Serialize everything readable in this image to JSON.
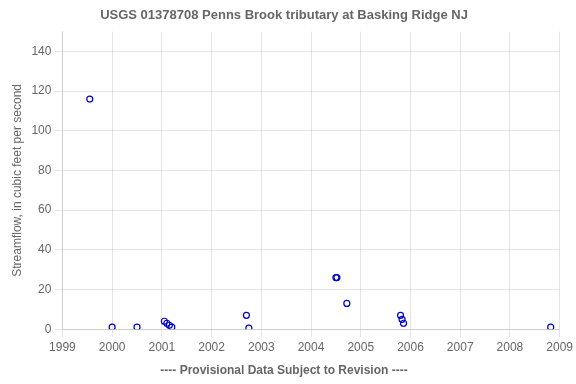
{
  "chart_data": {
    "type": "scatter",
    "title": "USGS 01378708 Penns Brook tributary at Basking Ridge NJ",
    "y_label": "Streamflow, in cubic feet per second",
    "annotation": "---- Provisional Data Subject to Revision ----",
    "x": [
      1999.55,
      2000.0,
      2000.5,
      2001.05,
      2001.1,
      2001.15,
      2001.2,
      2002.7,
      2002.75,
      2004.5,
      2004.52,
      2004.72,
      2005.8,
      2005.83,
      2005.86,
      2008.82
    ],
    "values": [
      116,
      1,
      1,
      4,
      3,
      2,
      1,
      7,
      0.5,
      26,
      26,
      13,
      7,
      5,
      3,
      1
    ],
    "color": "#0000cc",
    "marker": "circle",
    "xlim": [
      1999,
      2009
    ],
    "ylim": [
      0,
      150
    ],
    "xticks": [
      1999,
      2000,
      2001,
      2002,
      2003,
      2004,
      2005,
      2006,
      2007,
      2008,
      2009
    ],
    "yticks": [
      0,
      20,
      40,
      60,
      80,
      100,
      120,
      140
    ],
    "grid": true
  }
}
